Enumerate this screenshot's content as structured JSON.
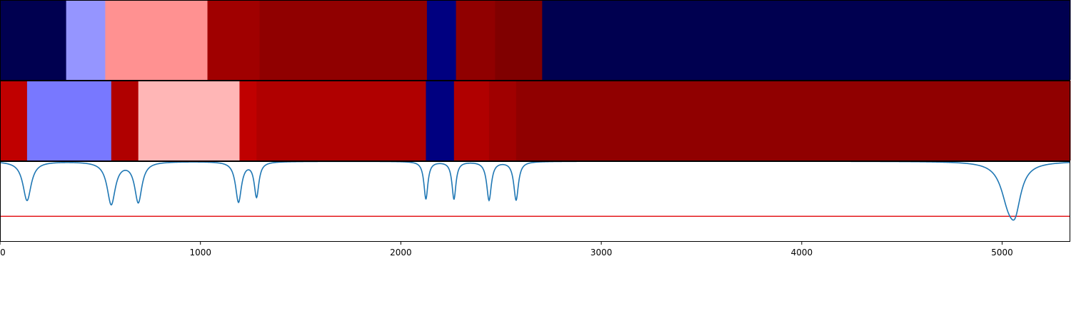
{
  "chart_data": {
    "type": "heatmap",
    "x_range": [
      0,
      5340
    ],
    "x_ticks": [
      0,
      1000,
      2000,
      3000,
      4000,
      5000
    ],
    "tick_labels": [
      "0",
      "1000",
      "2000",
      "3000",
      "4000",
      "5000"
    ],
    "grid": false,
    "bands": [
      {
        "segments": [
          {
            "x0": 0,
            "x1": 330,
            "color": "#000050"
          },
          {
            "x0": 330,
            "x1": 525,
            "color": "#9595ff"
          },
          {
            "x0": 525,
            "x1": 1035,
            "color": "#ff9191"
          },
          {
            "x0": 1035,
            "x1": 1295,
            "color": "#a00000"
          },
          {
            "x0": 1295,
            "x1": 2130,
            "color": "#900000"
          },
          {
            "x0": 2130,
            "x1": 2275,
            "color": "#000080"
          },
          {
            "x0": 2275,
            "x1": 2470,
            "color": "#900000"
          },
          {
            "x0": 2470,
            "x1": 2705,
            "color": "#800000"
          },
          {
            "x0": 2705,
            "x1": 5340,
            "color": "#000050"
          }
        ]
      },
      {
        "segments": [
          {
            "x0": 0,
            "x1": 135,
            "color": "#c00000"
          },
          {
            "x0": 135,
            "x1": 555,
            "color": "#7878ff"
          },
          {
            "x0": 555,
            "x1": 690,
            "color": "#b00000"
          },
          {
            "x0": 690,
            "x1": 1195,
            "color": "#ffb6b6"
          },
          {
            "x0": 1195,
            "x1": 1280,
            "color": "#c00000"
          },
          {
            "x0": 1280,
            "x1": 2125,
            "color": "#b00000"
          },
          {
            "x0": 2125,
            "x1": 2265,
            "color": "#000080"
          },
          {
            "x0": 2265,
            "x1": 2440,
            "color": "#b00000"
          },
          {
            "x0": 2440,
            "x1": 2575,
            "color": "#a00000"
          },
          {
            "x0": 2575,
            "x1": 5040,
            "color": "#900000"
          },
          {
            "x0": 5040,
            "x1": 5340,
            "color": "#900000"
          }
        ]
      }
    ],
    "series": [
      {
        "color": "#1f77b4",
        "baseline": 1.0,
        "dips": [
          {
            "center": 135,
            "depth": 0.71,
            "width": 25
          },
          {
            "center": 555,
            "depth": 0.77,
            "width": 25
          },
          {
            "center": 690,
            "depth": 0.73,
            "width": 22
          },
          {
            "center": 1190,
            "depth": 0.73,
            "width": 18
          },
          {
            "center": 1280,
            "depth": 0.63,
            "width": 14
          },
          {
            "center": 2125,
            "depth": 0.68,
            "width": 12
          },
          {
            "center": 2265,
            "depth": 0.68,
            "width": 12
          },
          {
            "center": 2440,
            "depth": 0.7,
            "width": 14
          },
          {
            "center": 2575,
            "depth": 0.7,
            "width": 14
          },
          {
            "center": 5030,
            "depth": 0.6,
            "width": 45
          },
          {
            "center": 5065,
            "depth": 0.66,
            "width": 35
          }
        ]
      }
    ],
    "threshold": {
      "value": 0.0,
      "color": "#e41a1c"
    },
    "lower_panel_ylim": [
      -0.45,
      1.0
    ]
  }
}
